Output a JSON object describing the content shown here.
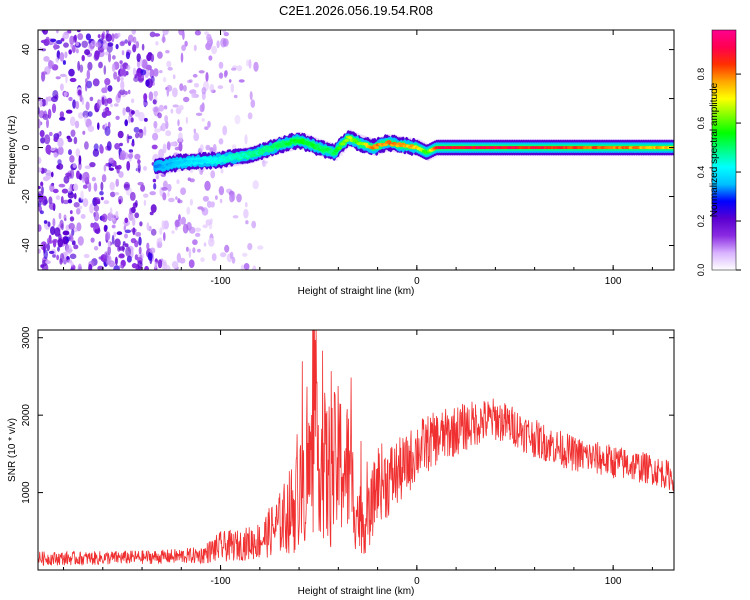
{
  "figure_title": "C2E1.2026.056.19.54.R08",
  "chart_data": [
    {
      "type": "heatmap",
      "title": "C2E1.2026.056.19.54.R08",
      "xlabel": "Height of straight line (km)",
      "ylabel": "Frequency (Hz)",
      "xlim": [
        -193,
        131
      ],
      "ylim": [
        -50,
        48
      ],
      "xticks": [
        -100,
        0,
        100
      ],
      "yticks": [
        -40,
        -20,
        0,
        20,
        40
      ],
      "colorbar": {
        "label": "Normalized spectral amplitude",
        "range": [
          0,
          0.98
        ],
        "ticks": [
          0.0,
          0.2,
          0.4,
          0.6,
          0.8
        ],
        "colormap": [
          "#ffffff",
          "#d9b3ff",
          "#8a2be2",
          "#5a00d0",
          "#0000ff",
          "#00bfff",
          "#00ffff",
          "#00ff80",
          "#00ff00",
          "#80ff00",
          "#ffff00",
          "#ffa500",
          "#ff3000",
          "#ff0050",
          "#ff0090"
        ]
      },
      "ridge": {
        "description_points_km": [
          -133,
          -120,
          -100,
          -85,
          -70,
          -60,
          -50,
          -42,
          -35,
          -30,
          -22,
          -15,
          -8,
          0,
          5,
          10,
          40,
          80,
          131
        ],
        "frequency_hz": [
          -8,
          -6,
          -5,
          -3,
          1,
          3,
          0,
          -2,
          4,
          2,
          0,
          2,
          1,
          0,
          -2,
          0,
          0,
          0,
          0
        ],
        "peak_amplitude": [
          0.35,
          0.4,
          0.45,
          0.5,
          0.55,
          0.6,
          0.55,
          0.55,
          0.7,
          0.65,
          0.85,
          0.85,
          0.8,
          0.8,
          0.6,
          0.95,
          0.95,
          0.9,
          0.8
        ]
      },
      "noise_region_km": [
        -193,
        -80
      ]
    },
    {
      "type": "line",
      "title": "",
      "xlabel": "Height of straight line (km)",
      "ylabel": "SNR (10 * v/v)",
      "xlim": [
        -193,
        131
      ],
      "ylim": [
        0,
        3100
      ],
      "xticks": [
        -100,
        0,
        100
      ],
      "yticks": [
        1000,
        2000,
        3000
      ],
      "color": "#f03030",
      "series": [
        {
          "name": "SNR",
          "x": [
            -193,
            -170,
            -150,
            -130,
            -110,
            -100,
            -90,
            -80,
            -70,
            -60,
            -55,
            -50,
            -45,
            -40,
            -35,
            -30,
            -25,
            -20,
            -15,
            -10,
            -5,
            0,
            10,
            20,
            30,
            40,
            50,
            60,
            70,
            80,
            90,
            100,
            110,
            120,
            131
          ],
          "y": [
            150,
            150,
            160,
            170,
            190,
            300,
            320,
            380,
            600,
            900,
            1300,
            1500,
            1200,
            1400,
            1300,
            700,
            600,
            1150,
            1150,
            1250,
            1350,
            1550,
            1700,
            1800,
            1900,
            1950,
            1850,
            1700,
            1600,
            1500,
            1450,
            1400,
            1350,
            1300,
            1200
          ],
          "spread": [
            90,
            90,
            90,
            90,
            110,
            200,
            200,
            250,
            400,
            700,
            900,
            1000,
            1000,
            1000,
            900,
            500,
            400,
            500,
            500,
            450,
            400,
            400,
            350,
            330,
            300,
            280,
            260,
            250,
            240,
            230,
            220,
            220,
            210,
            200,
            190
          ]
        }
      ]
    }
  ]
}
